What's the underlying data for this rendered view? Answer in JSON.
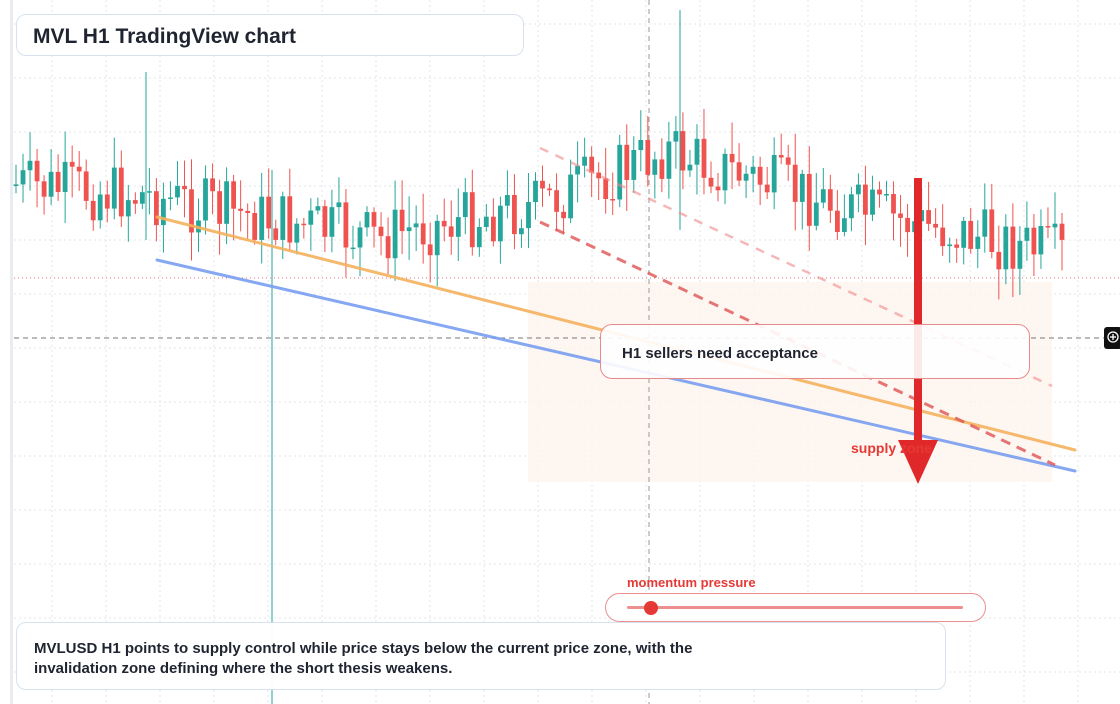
{
  "title": "MVL H1 TradingView chart",
  "callout": "H1 sellers need acceptance",
  "supply_label": "supply zone",
  "momentum": {
    "label": "momentum pressure",
    "level": 0.07
  },
  "summary": "MVLUSD H1 points to supply control while price stays below the current price zone, with the invalidation zone defining where the short thesis weakens.",
  "icons": [
    "crosshair-plus-icon"
  ],
  "colors": {
    "up": "#26a69a",
    "down": "#ef5350",
    "trend_orange": "#f5b25e",
    "trend_blue": "#7a9ef0",
    "arrow": "#e0282a",
    "accent_red": "#e53935"
  },
  "chart_data": {
    "type": "candlestick",
    "title": "MVL H1 TradingView chart",
    "symbol": "MVLUSD",
    "timeframe": "H1",
    "candle_count": 150,
    "y_axis": "price (no tick labels shown)",
    "grid": true,
    "bias": "bearish"
  }
}
